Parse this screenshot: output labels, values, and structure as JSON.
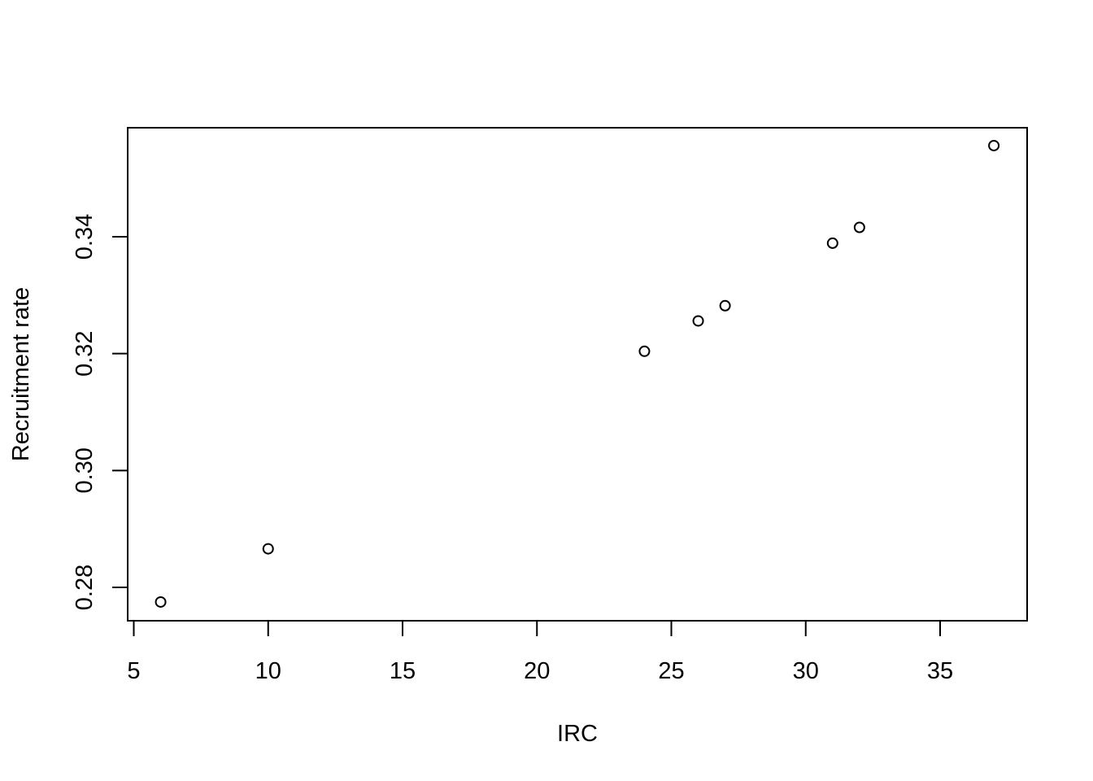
{
  "chart_data": {
    "type": "scatter",
    "title": "",
    "xlabel": "IRC",
    "ylabel": "Recruitment rate",
    "xlim": [
      5,
      38
    ],
    "ylim": [
      0.275,
      0.357
    ],
    "x_ticks": [
      5,
      10,
      15,
      20,
      25,
      30,
      35
    ],
    "x_tick_labels": [
      "5",
      "10",
      "15",
      "20",
      "25",
      "30",
      "35"
    ],
    "y_ticks": [
      0.28,
      0.3,
      0.32,
      0.34
    ],
    "y_tick_labels": [
      "0.28",
      "0.30",
      "0.32",
      "0.34"
    ],
    "grid": false,
    "legend": "none",
    "marker": "open-circle",
    "colors": {
      "marker": "#000000",
      "axis": "#000000",
      "background": "#ffffff"
    },
    "points": [
      {
        "x": 6,
        "y": 0.2775
      },
      {
        "x": 10,
        "y": 0.2866
      },
      {
        "x": 24,
        "y": 0.3204
      },
      {
        "x": 26,
        "y": 0.3256
      },
      {
        "x": 27,
        "y": 0.3282
      },
      {
        "x": 31,
        "y": 0.3389
      },
      {
        "x": 32,
        "y": 0.3416
      },
      {
        "x": 37,
        "y": 0.3556
      }
    ]
  }
}
